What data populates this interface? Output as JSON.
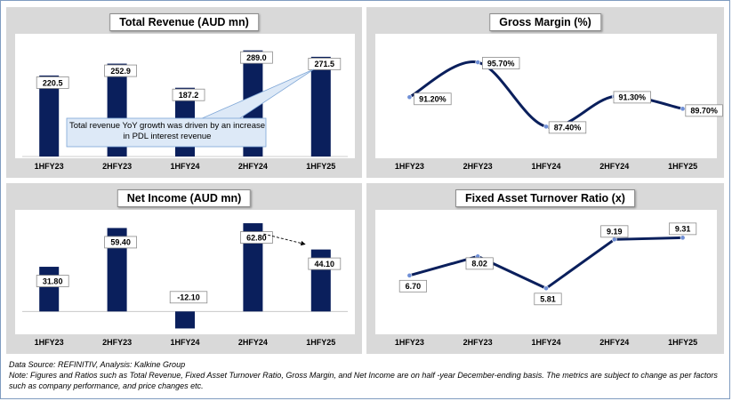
{
  "charts": [
    {
      "id": "revenue",
      "type": "bar",
      "title": "Total Revenue (AUD mn)",
      "categories": [
        "1HFY23",
        "2HFY23",
        "1HFY24",
        "2HFY24",
        "1HFY25"
      ],
      "values": [
        220.5,
        252.9,
        187.2,
        289.0,
        271.5
      ],
      "value_labels": [
        "220.5",
        "252.9",
        "187.2",
        "289.0",
        "271.5"
      ],
      "ylim": [
        0,
        310
      ],
      "bar_color": "#0a1f5c",
      "callout": "Total revenue YoY growth was driven by an increase in PDL interest revenue"
    },
    {
      "id": "gross-margin",
      "type": "line",
      "title": "Gross Margin (%)",
      "categories": [
        "1HFY23",
        "2HFY23",
        "1HFY24",
        "2HFY24",
        "1HFY25"
      ],
      "values": [
        91.2,
        95.7,
        87.4,
        91.3,
        89.7
      ],
      "value_labels": [
        "91.20%",
        "95.70%",
        "87.40%",
        "91.30%",
        "89.70%"
      ],
      "ylim": [
        84,
        98
      ],
      "smooth": true,
      "line_color": "#0a1f5c"
    },
    {
      "id": "net-income",
      "type": "bar",
      "title": "Net Income (AUD mn)",
      "categories": [
        "1HFY23",
        "2HFY23",
        "1HFY24",
        "2HFY24",
        "1HFY25"
      ],
      "values": [
        31.8,
        59.4,
        -12.1,
        62.8,
        44.1
      ],
      "value_labels": [
        "31.80",
        "59.40",
        "-12.10",
        "62.80",
        "44.10"
      ],
      "ylim": [
        -15,
        66
      ],
      "bar_color": "#0a1f5c"
    },
    {
      "id": "fat-ratio",
      "type": "line",
      "title": "Fixed Asset Turnover Ratio (x)",
      "categories": [
        "1HFY23",
        "2HFY23",
        "1HFY24",
        "2HFY24",
        "1HFY25"
      ],
      "values": [
        6.7,
        8.02,
        5.81,
        9.19,
        9.31
      ],
      "value_labels": [
        "6.70",
        "8.02",
        "5.81",
        "9.19",
        "9.31"
      ],
      "ylim": [
        3.0,
        10.5
      ],
      "smooth": false,
      "line_color": "#0a1f5c"
    }
  ],
  "footer": {
    "source": "Data Source: REFINITIV, Analysis: Kalkine Group",
    "note": "Note: Figures and Ratios such as Total Revenue, Fixed Asset Turnover Ratio, Gross Margin, and Net Income are on half -year December-ending basis. The metrics are subject to change as per factors such as company performance, and price changes etc."
  }
}
